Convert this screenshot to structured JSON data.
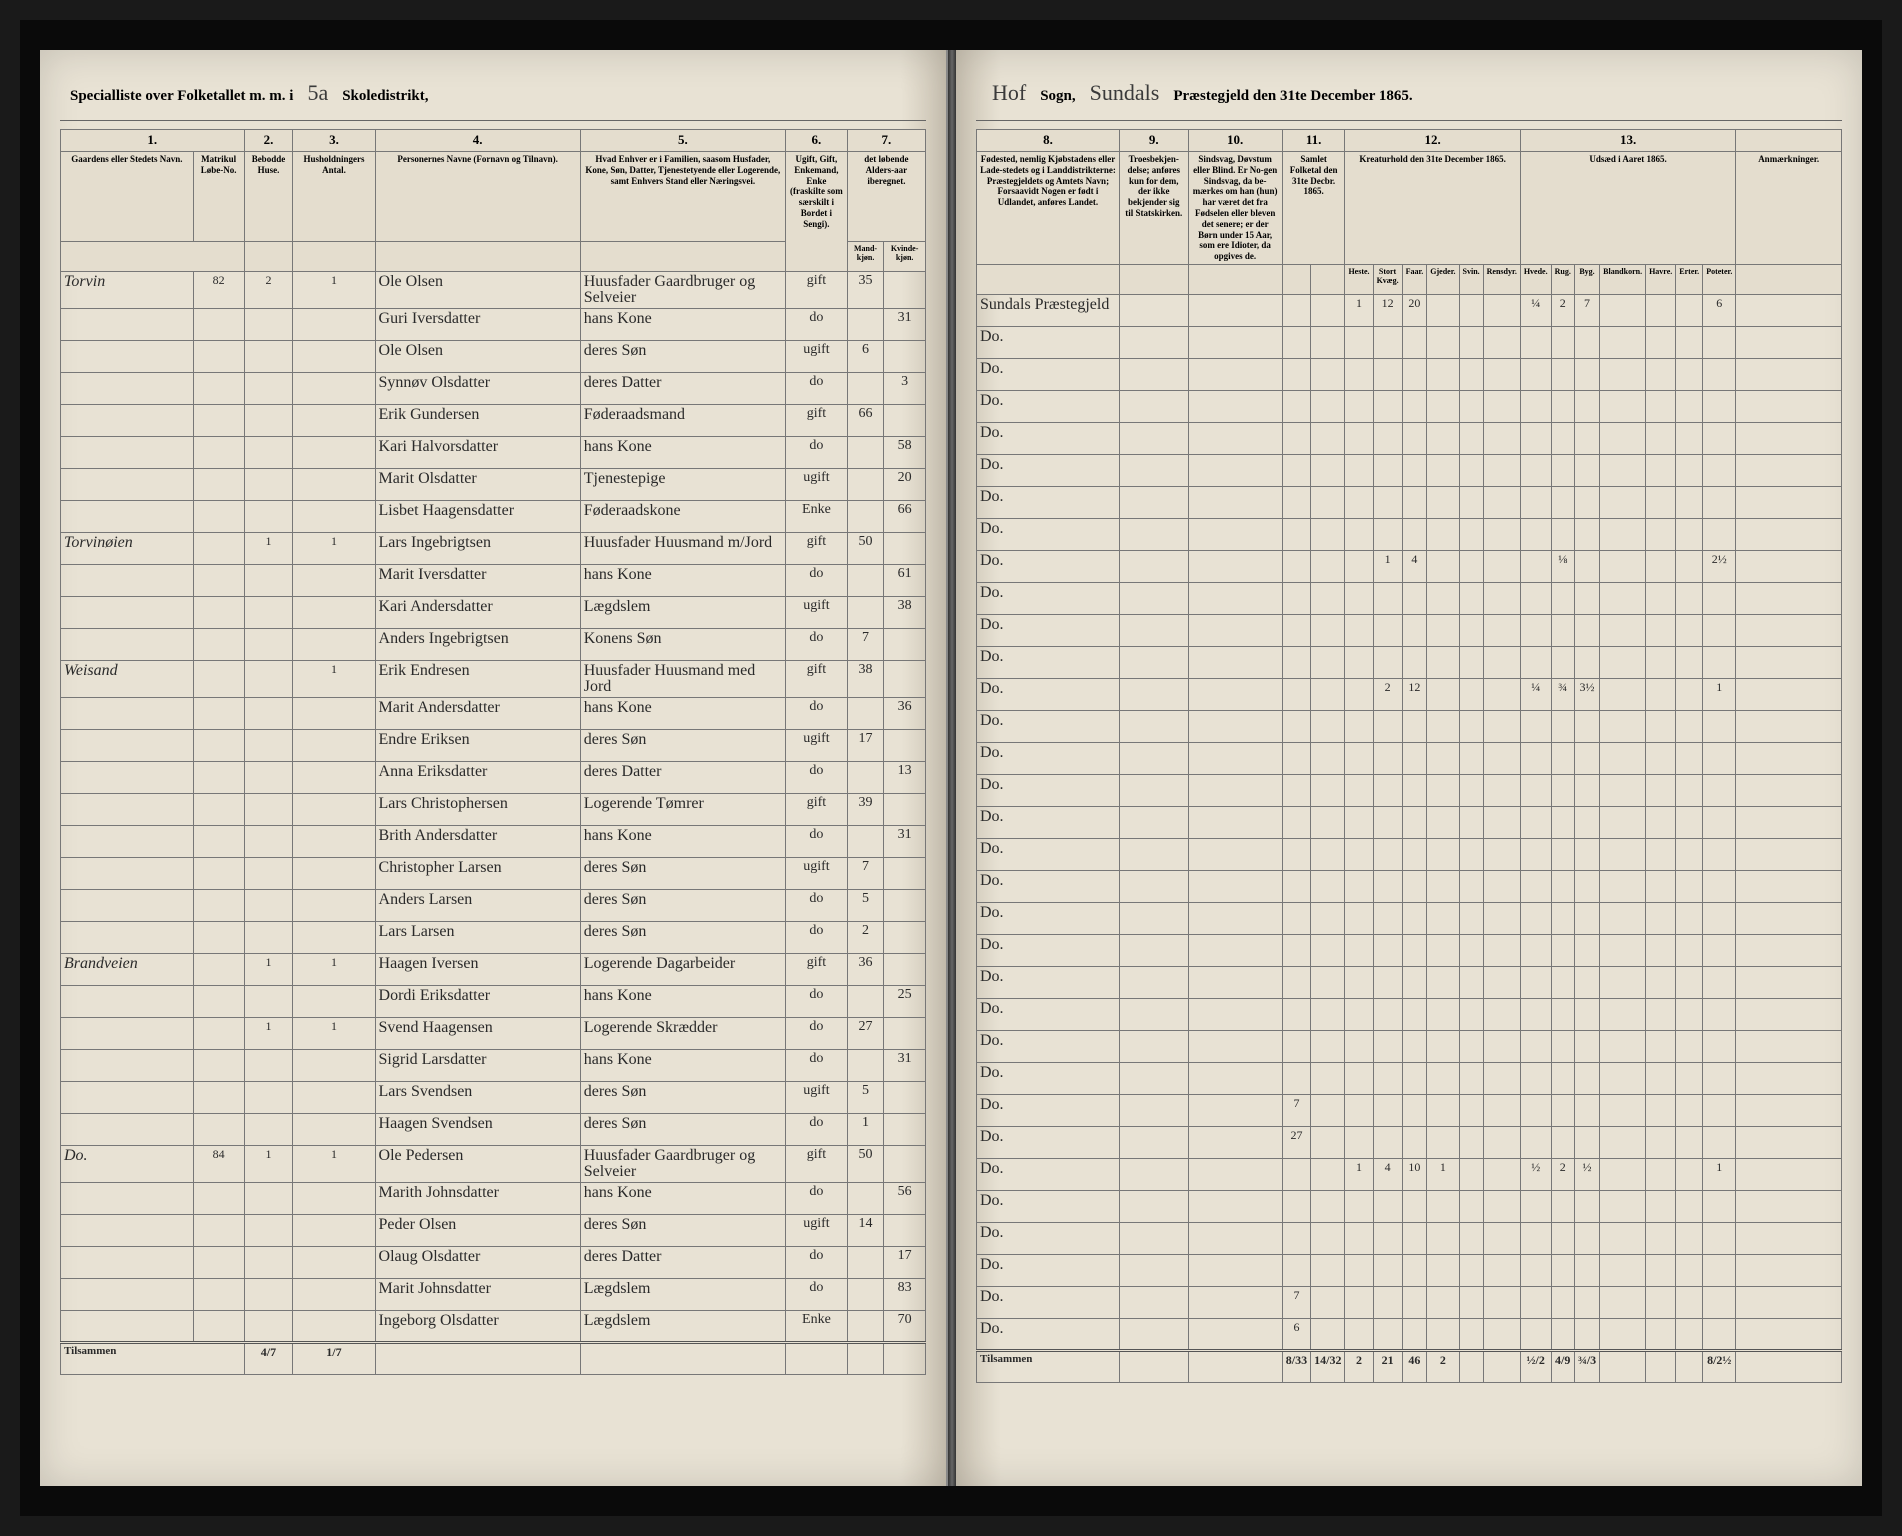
{
  "title_left": {
    "print1": "Specialliste over Folketallet m. m. i",
    "district_no": "5a",
    "print2": "Skoledistrikt,"
  },
  "title_right": {
    "sogn_hand": "Hof",
    "print1": "Sogn,",
    "prgd_hand": "Sundals",
    "print2": "Præstegjeld den 31te December 1865."
  },
  "left_cols": {
    "c1": "1.",
    "c2": "2.",
    "c3": "3.",
    "c4": "4.",
    "c5": "5.",
    "c6": "6.",
    "c7": "7.",
    "h1": "Gaardens eller Stedets\nNavn.",
    "h1b": "Matrikul Løbe-No.",
    "h2": "Bebodde Huse.",
    "h3": "Husholdningers Antal.",
    "h4": "Personernes Navne (Fornavn og Tilnavn).",
    "h5": "Hvad Enhver er i Familien, saasom Husfader, Kone, Søn, Datter, Tjenestetyende eller Logerende, samt Enhvers Stand eller Næringsvei.",
    "h6": "Ugift, Gift, Enkemand, Enke (fraskilte som særskilt i Bordet i Sengi).",
    "h7a": "det løbende Alders-aar iberegnet.",
    "h7m": "Mand-kjøn.",
    "h7k": "Kvinde-kjøn."
  },
  "right_cols": {
    "c8": "8.",
    "c9": "9.",
    "c10": "10.",
    "c11": "11.",
    "c12": "12.",
    "c13": "13.",
    "h8": "Fødested,\nnemlig Kjøbstadens eller Lade-stedets og i Landdistrikterne: Præstegjeldets og Amtets Navn; Forsaavidt Nogen er født i Udlandet, anføres Landet.",
    "h9": "Troesbekjen-delse; anføres kun for dem, der ikke bekjender sig til Statskirken.",
    "h10": "Sindsvag, Døvstum eller Blind. Er No-gen Sindsvag, da be-mærkes om han (hun) har været det fra Fødselen eller bleven det senere; er der Børn under 15 Aar, som ere Idioter, da opgives de.",
    "h11": "Samlet Folketal den 31te Decbr. 1865.",
    "h12": "Kreaturhold den 31te December 1865.",
    "h13": "Udsæd i Aaret 1865.",
    "h14": "Anmærkninger.",
    "s12a": "Heste.",
    "s12b": "Stort Kvæg.",
    "s12c": "Faar.",
    "s12d": "Gjeder.",
    "s12e": "Svin.",
    "s12f": "Rensdyr.",
    "s13a": "Hvede.",
    "s13b": "Rug.",
    "s13c": "Byg.",
    "s13d": "Blandkorn.",
    "s13e": "Havre.",
    "s13f": "Erter.",
    "s13g": "Poteter."
  },
  "rows": [
    {
      "farm": "Torvin",
      "mno": "82",
      "hus": "2",
      "hh": "1",
      "name": "Ole Olsen",
      "pos": "Huusfader Gaardbruger og Selveier",
      "civ": "gift",
      "m": "35",
      "k": "",
      "birth": "Sundals Præstegjeld",
      "k1": "1",
      "k2": "12",
      "k3": "20",
      "u1": "¼",
      "u2": "2",
      "u3": "7",
      "u7": "6"
    },
    {
      "name": "Guri Iversdatter",
      "pos": "hans Kone",
      "civ": "do",
      "k": "31",
      "birth": "Do."
    },
    {
      "name": "Ole Olsen",
      "pos": "deres Søn",
      "civ": "ugift",
      "m": "6",
      "birth": "Do."
    },
    {
      "name": "Synnøv Olsdatter",
      "pos": "deres Datter",
      "civ": "do",
      "k": "3",
      "birth": "Do."
    },
    {
      "name": "Erik Gundersen",
      "pos": "Føderaadsmand",
      "civ": "gift",
      "m": "66",
      "birth": "Do."
    },
    {
      "name": "Kari Halvorsdatter",
      "pos": "hans Kone",
      "civ": "do",
      "k": "58",
      "birth": "Do."
    },
    {
      "name": "Marit Olsdatter",
      "pos": "Tjenestepige",
      "civ": "ugift",
      "k": "20",
      "birth": "Do."
    },
    {
      "name": "Lisbet Haagensdatter",
      "pos": "Føderaadskone",
      "civ": "Enke",
      "k": "66",
      "birth": "Do."
    },
    {
      "farm": "Torvinøien",
      "hus": "1",
      "hh": "1",
      "name": "Lars Ingebrigtsen",
      "pos": "Huusfader Huusmand m/Jord",
      "civ": "gift",
      "m": "50",
      "birth": "Do.",
      "k2": "1",
      "k3": "4",
      "u2": "⅛",
      "u7": "2½"
    },
    {
      "name": "Marit Iversdatter",
      "pos": "hans Kone",
      "civ": "do",
      "k": "61",
      "birth": "Do."
    },
    {
      "name": "Kari Andersdatter",
      "pos": "Lægdslem",
      "civ": "ugift",
      "k": "38",
      "birth": "Do."
    },
    {
      "name": "Anders Ingebrigtsen",
      "pos": "Konens Søn",
      "civ": "do",
      "m": "7",
      "birth": "Do."
    },
    {
      "farm": "Weisand",
      "hus": "",
      "hh": "1",
      "mno": "",
      "husF": "1",
      "name": "Erik Endresen",
      "pos": "Huusfader Huusmand med Jord",
      "civ": "gift",
      "m": "38",
      "birth": "Do.",
      "k2": "2",
      "k3": "12",
      "u1": "¼",
      "u2": "¾",
      "u3": "3½",
      "u7": "1"
    },
    {
      "name": "Marit Andersdatter",
      "pos": "hans Kone",
      "civ": "do",
      "k": "36",
      "birth": "Do."
    },
    {
      "name": "Endre Eriksen",
      "pos": "deres Søn",
      "civ": "ugift",
      "m": "17",
      "birth": "Do."
    },
    {
      "name": "Anna Eriksdatter",
      "pos": "deres Datter",
      "civ": "do",
      "k": "13",
      "birth": "Do."
    },
    {
      "name": "Lars Christophersen",
      "pos": "Logerende Tømrer",
      "civ": "gift",
      "m": "39",
      "birth": "Do."
    },
    {
      "name": "Brith Andersdatter",
      "pos": "hans Kone",
      "civ": "do",
      "k": "31",
      "birth": "Do."
    },
    {
      "name": "Christopher Larsen",
      "pos": "deres Søn",
      "civ": "ugift",
      "m": "7",
      "birth": "Do."
    },
    {
      "name": "Anders Larsen",
      "pos": "deres Søn",
      "civ": "do",
      "m": "5",
      "birth": "Do."
    },
    {
      "name": "Lars Larsen",
      "pos": "deres Søn",
      "civ": "do",
      "m": "2",
      "birth": "Do."
    },
    {
      "farm": "Brandveien",
      "hus": "1",
      "hh": "1",
      "name": "Haagen Iversen",
      "pos": "Logerende Dagarbeider",
      "civ": "gift",
      "m": "36",
      "birth": "Do."
    },
    {
      "name": "Dordi Eriksdatter",
      "pos": "hans Kone",
      "civ": "do",
      "k": "25",
      "birth": "Do."
    },
    {
      "hus": "1",
      "hh": "1",
      "name": "Svend Haagensen",
      "pos": "Logerende Skrædder",
      "civ": "do",
      "m": "27",
      "birth": "Do."
    },
    {
      "name": "Sigrid Larsdatter",
      "pos": "hans Kone",
      "civ": "do",
      "k": "31",
      "birth": "Do."
    },
    {
      "name": "Lars Svendsen",
      "pos": "deres Søn",
      "civ": "ugift",
      "m": "5",
      "birth": "Do.",
      "c11": "7"
    },
    {
      "name": "Haagen Svendsen",
      "pos": "deres Søn",
      "civ": "do",
      "m": "1",
      "birth": "Do.",
      "c11": "27"
    },
    {
      "farm": "Do.",
      "mno": "84",
      "hus": "1",
      "hh": "1",
      "name": "Ole Pedersen",
      "pos": "Huusfader Gaardbruger og Selveier",
      "civ": "gift",
      "m": "50",
      "birth": "Do.",
      "k1": "1",
      "k2": "4",
      "k3": "10",
      "k4": "1",
      "u1": "½",
      "u2": "2",
      "u3": "½",
      "u7": "1"
    },
    {
      "name": "Marith Johnsdatter",
      "pos": "hans Kone",
      "civ": "do",
      "k": "56",
      "birth": "Do."
    },
    {
      "name": "Peder Olsen",
      "pos": "deres Søn",
      "civ": "ugift",
      "m": "14",
      "birth": "Do."
    },
    {
      "name": "Olaug Olsdatter",
      "pos": "deres Datter",
      "civ": "do",
      "k": "17",
      "birth": "Do."
    },
    {
      "name": "Marit Johnsdatter",
      "pos": "Lægdslem",
      "civ": "do",
      "k": "83",
      "birth": "Do.",
      "c11": "7"
    },
    {
      "name": "Ingeborg Olsdatter",
      "pos": "Lægdslem",
      "civ": "Enke",
      "k": "70",
      "birth": "Do.",
      "c11": "6"
    }
  ],
  "footer": {
    "label": "Tilsammen",
    "left_hus": "4/7",
    "left_hh": "1/7",
    "c11a": "8/33",
    "c11b": "14/32",
    "k1": "2",
    "k2": "21",
    "k3": "46",
    "k4": "2",
    "u1": "½/2",
    "u2": "4/9",
    "u3": "¾/3",
    "u7": "8/2½"
  }
}
